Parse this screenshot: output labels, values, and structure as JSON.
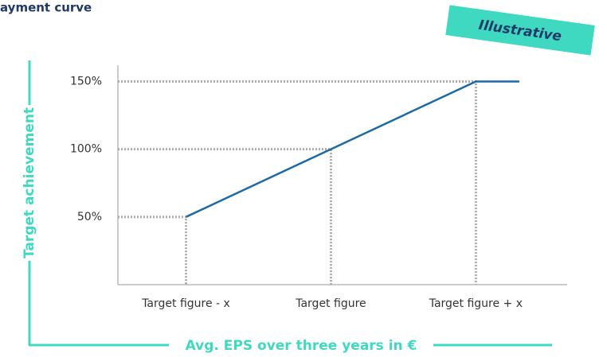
{
  "chart_data": {
    "type": "line",
    "title": "ayment curve",
    "badge": "Illustrative",
    "x_label": "Avg. EPS over three years in €",
    "y_label": "Target achievement",
    "x": [
      -1,
      0,
      1,
      1.3
    ],
    "series": [
      {
        "name": "Payment curve",
        "color": "#1c6aa5",
        "values": [
          50,
          100,
          150,
          150
        ]
      }
    ],
    "xlim": [
      -1.47,
      1.63
    ],
    "xticks": [
      {
        "value": -1,
        "label": "Target figure - x"
      },
      {
        "value": 0,
        "label": "Target figure"
      },
      {
        "value": 1,
        "label": "Target figure + x"
      }
    ],
    "ylim": [
      0,
      162
    ],
    "yticks": [
      {
        "value": 50,
        "label": "50%"
      },
      {
        "value": 100,
        "label": "100%"
      },
      {
        "value": 150,
        "label": "150%"
      }
    ],
    "accent_color": "#3fd9c2"
  }
}
